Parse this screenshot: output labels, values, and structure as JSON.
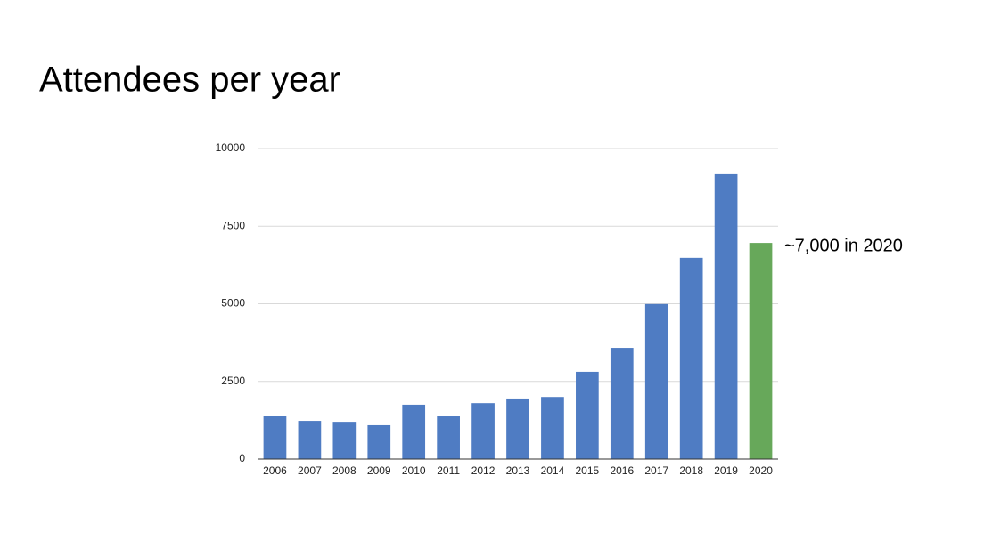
{
  "chart_data": {
    "type": "bar",
    "title": "Attendees per year",
    "categories": [
      "2006",
      "2007",
      "2008",
      "2009",
      "2010",
      "2011",
      "2012",
      "2013",
      "2014",
      "2015",
      "2016",
      "2017",
      "2018",
      "2019",
      "2020"
    ],
    "values": [
      1380,
      1230,
      1200,
      1090,
      1750,
      1375,
      1800,
      1950,
      2000,
      2810,
      3580,
      4990,
      6480,
      9200,
      6960
    ],
    "colors": [
      "#4f7cc3",
      "#4f7cc3",
      "#4f7cc3",
      "#4f7cc3",
      "#4f7cc3",
      "#4f7cc3",
      "#4f7cc3",
      "#4f7cc3",
      "#4f7cc3",
      "#4f7cc3",
      "#4f7cc3",
      "#4f7cc3",
      "#4f7cc3",
      "#4f7cc3",
      "#67a85a"
    ],
    "ylim": [
      0,
      10000
    ],
    "yticks": [
      0,
      2500,
      5000,
      7500,
      10000
    ],
    "grid": true,
    "annotation": "~7,000 in 2020"
  }
}
